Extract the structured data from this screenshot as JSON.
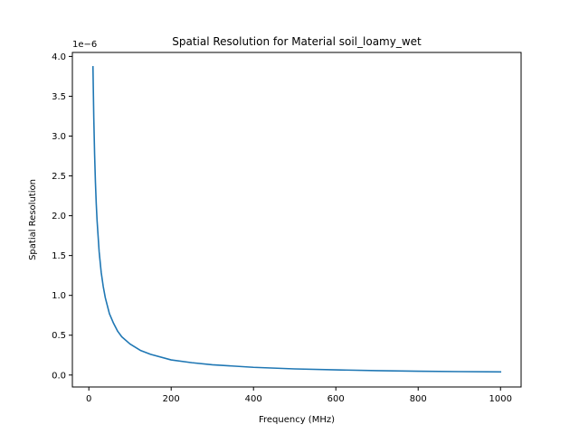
{
  "chart_data": {
    "type": "line",
    "title": "Spatial Resolution for Material soil_loamy_wet",
    "xlabel": "Frequency (MHz)",
    "ylabel": "Spatial Resolution",
    "y_offset_text": "1e−6",
    "xlim": [
      -40,
      1050
    ],
    "ylim": [
      -0.15,
      4.05
    ],
    "xticks": [
      0,
      200,
      400,
      600,
      800,
      1000
    ],
    "xtick_labels": [
      "0",
      "200",
      "400",
      "600",
      "800",
      "1000"
    ],
    "yticks": [
      0.0,
      0.5,
      1.0,
      1.5,
      2.0,
      2.5,
      3.0,
      3.5,
      4.0
    ],
    "ytick_labels": [
      "0.0",
      "0.5",
      "1.0",
      "1.5",
      "2.0",
      "2.5",
      "3.0",
      "3.5",
      "4.0"
    ],
    "grid": false,
    "series": [
      {
        "color": "#1f77b4",
        "x": [
          10,
          12,
          14,
          16,
          18,
          20,
          25,
          30,
          35,
          40,
          50,
          60,
          70,
          80,
          100,
          125,
          150,
          200,
          250,
          300,
          400,
          500,
          600,
          700,
          800,
          900,
          1000
        ],
        "y": [
          3.87,
          3.23,
          2.77,
          2.42,
          2.15,
          1.94,
          1.55,
          1.29,
          1.11,
          0.97,
          0.77,
          0.65,
          0.55,
          0.48,
          0.39,
          0.31,
          0.26,
          0.19,
          0.155,
          0.129,
          0.097,
          0.077,
          0.065,
          0.055,
          0.048,
          0.043,
          0.039
        ]
      }
    ]
  }
}
